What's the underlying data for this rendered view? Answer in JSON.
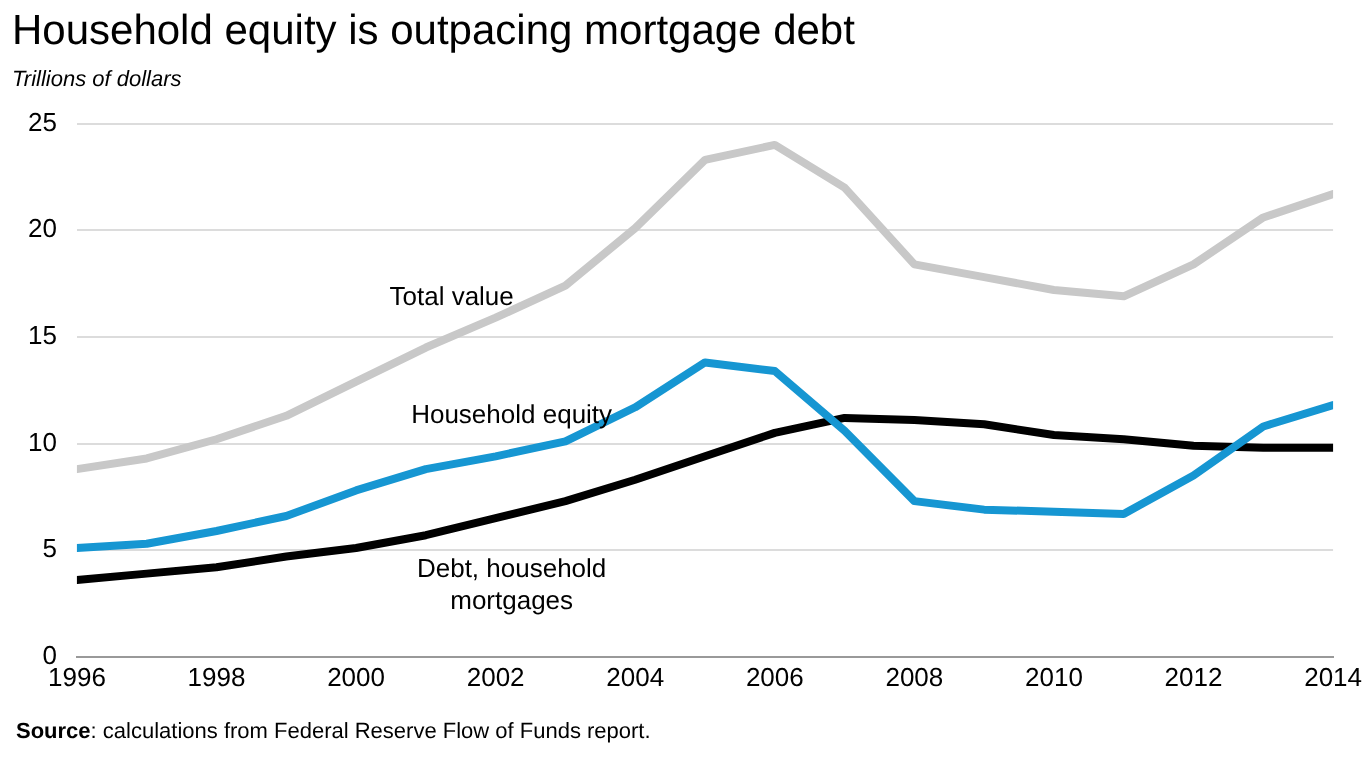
{
  "chart_data": {
    "type": "line",
    "title": "Household equity is outpacing mortgage debt",
    "ylabel": "Trillions of dollars",
    "x": [
      1996,
      1997,
      1998,
      1999,
      2000,
      2001,
      2002,
      2003,
      2004,
      2005,
      2006,
      2007,
      2008,
      2009,
      2010,
      2011,
      2012,
      2013,
      2014
    ],
    "series": [
      {
        "name": "Total value",
        "color": "#c8c8c8",
        "values": [
          8.8,
          9.3,
          10.2,
          11.3,
          12.9,
          14.5,
          15.9,
          17.4,
          20.1,
          23.3,
          24.0,
          22.0,
          18.4,
          17.8,
          17.2,
          16.9,
          18.4,
          20.6,
          21.7
        ]
      },
      {
        "name": "Household equity",
        "color": "#1696d2",
        "values": [
          5.1,
          5.3,
          5.9,
          6.6,
          7.8,
          8.8,
          9.4,
          10.1,
          11.7,
          13.8,
          13.4,
          10.6,
          7.3,
          6.9,
          6.8,
          6.7,
          8.5,
          10.8,
          11.8
        ]
      },
      {
        "name": "Debt, household mortgages",
        "color": "#000000",
        "values": [
          3.6,
          3.9,
          4.2,
          4.7,
          5.1,
          5.7,
          6.5,
          7.3,
          8.3,
          9.4,
          10.5,
          11.2,
          11.1,
          10.9,
          10.4,
          10.2,
          9.9,
          9.8,
          9.8
        ]
      }
    ],
    "xlim": [
      1996,
      2014
    ],
    "xticks": [
      1996,
      1998,
      2000,
      2002,
      2004,
      2006,
      2008,
      2010,
      2012,
      2014
    ],
    "ylim": [
      0,
      25
    ],
    "yticks": [
      0,
      5,
      10,
      15,
      20,
      25
    ],
    "grid": "y",
    "legend": false,
    "marker": "none",
    "line_style": "solid",
    "annotations": [
      "Source: calculations from Federal Reserve Flow of Funds report."
    ]
  }
}
